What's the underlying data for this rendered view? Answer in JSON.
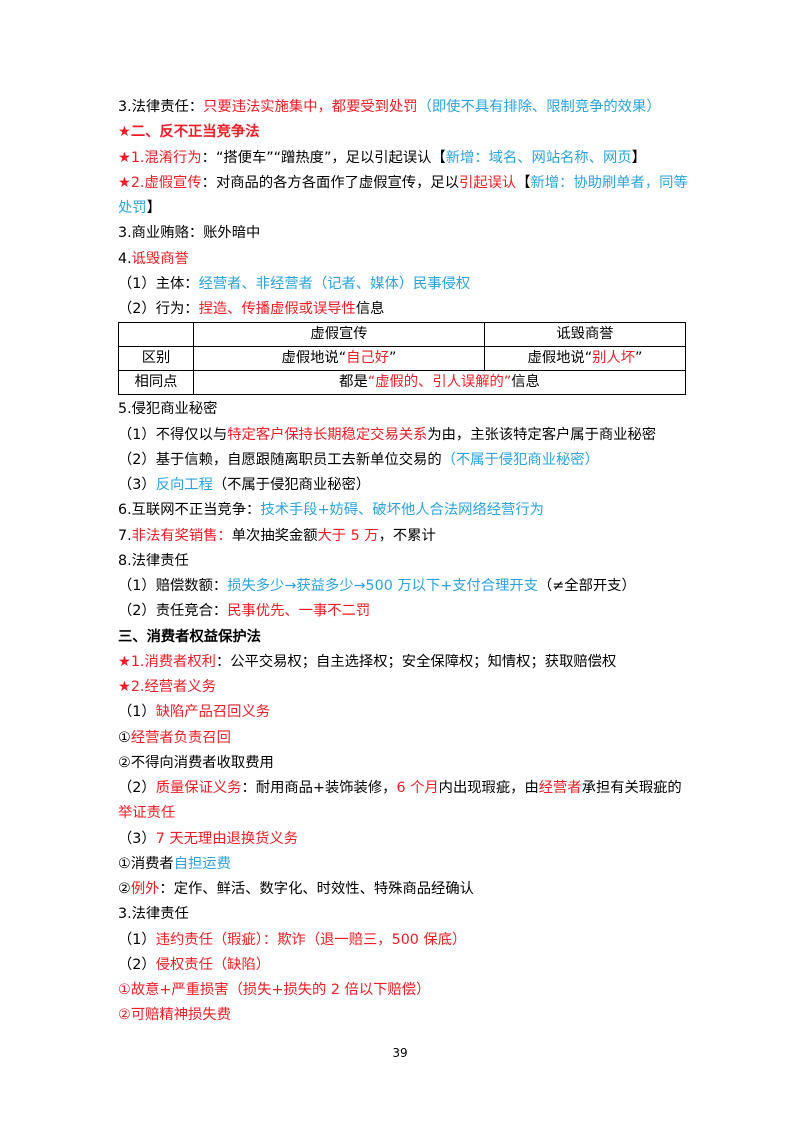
{
  "lines_before": [
    {
      "segments": [
        {
          "text": "3.法律责任：",
          "color": "#000000"
        },
        {
          "text": "只要违法实施集中，都要受到处罚",
          "color": "#ee1c25"
        },
        {
          "text": "（即使不具有排除、限制竞争的效果）",
          "color": "#2aa3dc"
        }
      ]
    },
    {
      "bold": true,
      "segments": [
        {
          "text": "★二、反不正当竞争法",
          "color": "#ee1c25"
        }
      ]
    },
    {
      "segments": [
        {
          "text": "★1.混淆行为",
          "color": "#ee1c25"
        },
        {
          "text": "：“搭便车”“蹭热度”，足以引起误认【",
          "color": "#000000"
        },
        {
          "text": "新增：域名、网站名称、网页",
          "color": "#2aa3dc"
        },
        {
          "text": "】",
          "color": "#000000"
        }
      ]
    },
    {
      "segments": [
        {
          "text": "★2.虚假宣传",
          "color": "#ee1c25"
        },
        {
          "text": "：对商品的各方各面作了虚假宣传，足以",
          "color": "#000000"
        },
        {
          "text": "引起误认",
          "color": "#ee1c25"
        },
        {
          "text": "【",
          "color": "#000000"
        },
        {
          "text": "新增：协助刷单者，同等处罚",
          "color": "#2aa3dc"
        },
        {
          "text": "】",
          "color": "#000000"
        }
      ]
    },
    {
      "segments": [
        {
          "text": "3.商业贿赂：账外暗中",
          "color": "#000000"
        }
      ]
    },
    {
      "segments": [
        {
          "text": "4.",
          "color": "#000000"
        },
        {
          "text": "诋毁商誉",
          "color": "#ee1c25"
        }
      ]
    },
    {
      "segments": [
        {
          "text": "（1）主体：",
          "color": "#000000"
        },
        {
          "text": "经营者、非经营者（记者、媒体）民事侵权",
          "color": "#2aa3dc"
        }
      ]
    },
    {
      "segments": [
        {
          "text": "（2）行为：",
          "color": "#000000"
        },
        {
          "text": "捏造、传播虚假或误导性",
          "color": "#ee1c25"
        },
        {
          "text": "信息",
          "color": "#000000"
        }
      ]
    }
  ],
  "table": {
    "rows": [
      [
        null,
        [
          {
            "text": "虚假宣传",
            "color": "#000000"
          }
        ],
        [
          {
            "text": "诋毁商誉",
            "color": "#000000"
          }
        ]
      ],
      [
        [
          {
            "text": "区别",
            "color": "#000000"
          }
        ],
        [
          {
            "text": "虚假地说“",
            "color": "#000000"
          },
          {
            "text": "自己好",
            "color": "#ee1c25"
          },
          {
            "text": "”",
            "color": "#000000"
          }
        ],
        [
          {
            "text": "虚假地说“",
            "color": "#000000"
          },
          {
            "text": "别人坏",
            "color": "#ee1c25"
          },
          {
            "text": "”",
            "color": "#000000"
          }
        ]
      ],
      [
        [
          {
            "text": "相同点",
            "color": "#000000"
          }
        ],
        [
          {
            "text": "都是",
            "color": "#000000"
          },
          {
            "text": "“虚假的、引人误解的”",
            "color": "#ee1c25"
          },
          {
            "text": "信息",
            "color": "#000000"
          }
        ]
      ]
    ]
  },
  "lines_after": [
    {
      "segments": [
        {
          "text": "5.侵犯商业秘密",
          "color": "#000000"
        }
      ]
    },
    {
      "segments": [
        {
          "text": "（1）不得仅以与",
          "color": "#000000"
        },
        {
          "text": "特定客户保持长期稳定交易关系",
          "color": "#ee1c25"
        },
        {
          "text": "为由，主张该特定客户属于商业秘密",
          "color": "#000000"
        }
      ]
    },
    {
      "segments": [
        {
          "text": "（2）基于信赖，自愿跟随离职员工去新单位交易的",
          "color": "#000000"
        },
        {
          "text": "（不属于侵犯商业秘密）",
          "color": "#2aa3dc"
        }
      ]
    },
    {
      "segments": [
        {
          "text": "（3）",
          "color": "#000000"
        },
        {
          "text": "反向工程",
          "color": "#2aa3dc"
        },
        {
          "text": "（不属于侵犯商业秘密）",
          "color": "#000000"
        }
      ]
    },
    {
      "segments": [
        {
          "text": "6.互联网不正当竞争：",
          "color": "#000000"
        },
        {
          "text": "技术手段+妨碍、破坏他人合法网络经营行为",
          "color": "#2aa3dc"
        }
      ]
    },
    {
      "segments": [
        {
          "text": "7.",
          "color": "#000000"
        },
        {
          "text": "非法有奖销售：",
          "color": "#ee1c25"
        },
        {
          "text": "单次抽奖金额",
          "color": "#000000"
        },
        {
          "text": "大于 5 万",
          "color": "#ee1c25"
        },
        {
          "text": "，不累计",
          "color": "#000000"
        }
      ]
    },
    {
      "segments": [
        {
          "text": "8.法律责任",
          "color": "#000000"
        }
      ]
    },
    {
      "segments": [
        {
          "text": "（1）赔偿数额：",
          "color": "#000000"
        },
        {
          "text": "损失多少→获益多少→500 万以下+支付合理开支",
          "color": "#2aa3dc"
        },
        {
          "text": "（≠全部开支）",
          "color": "#000000"
        }
      ]
    },
    {
      "segments": [
        {
          "text": "（2）责任竞合：",
          "color": "#000000"
        },
        {
          "text": "民事优先、一事不二罚",
          "color": "#ee1c25"
        }
      ]
    },
    {
      "bold": true,
      "segments": [
        {
          "text": "三、消费者权益保护法",
          "color": "#000000"
        }
      ]
    },
    {
      "segments": [
        {
          "text": "★1.消费者权利",
          "color": "#ee1c25"
        },
        {
          "text": "：公平交易权；自主选择权；安全保障权；知情权；获取赔偿权",
          "color": "#000000"
        }
      ]
    },
    {
      "segments": [
        {
          "text": "★2.经营者义务",
          "color": "#ee1c25"
        }
      ]
    },
    {
      "segments": [
        {
          "text": "（1）",
          "color": "#000000"
        },
        {
          "text": "缺陷产品召回义务",
          "color": "#ee1c25"
        }
      ]
    },
    {
      "segments": [
        {
          "text": "①",
          "color": "#000000"
        },
        {
          "text": "经营者负责召回",
          "color": "#ee1c25"
        }
      ]
    },
    {
      "segments": [
        {
          "text": "②不得向消费者收取费用",
          "color": "#000000"
        }
      ]
    },
    {
      "segments": [
        {
          "text": "（2）",
          "color": "#000000"
        },
        {
          "text": "质量保证义务",
          "color": "#ee1c25"
        },
        {
          "text": "：耐用商品+装饰装修，",
          "color": "#000000"
        },
        {
          "text": "6 个月",
          "color": "#ee1c25"
        },
        {
          "text": "内出现瑕疵，由",
          "color": "#000000"
        },
        {
          "text": "经营者",
          "color": "#ee1c25"
        },
        {
          "text": "承担有关瑕疵的",
          "color": "#000000"
        },
        {
          "text": "举证责任",
          "color": "#ee1c25"
        }
      ]
    },
    {
      "segments": [
        {
          "text": "（3）",
          "color": "#000000"
        },
        {
          "text": "7 天无理由退换货义务",
          "color": "#ee1c25"
        }
      ]
    },
    {
      "segments": [
        {
          "text": "①消费者",
          "color": "#000000"
        },
        {
          "text": "自担运费",
          "color": "#2aa3dc"
        }
      ]
    },
    {
      "segments": [
        {
          "text": "②",
          "color": "#000000"
        },
        {
          "text": "例外",
          "color": "#ee1c25"
        },
        {
          "text": "：定作、鲜活、数字化、时效性、特殊商品经确认",
          "color": "#000000"
        }
      ]
    },
    {
      "segments": [
        {
          "text": "3.法律责任",
          "color": "#000000"
        }
      ]
    },
    {
      "segments": [
        {
          "text": "（1）",
          "color": "#000000"
        },
        {
          "text": "违约责任（瑕疵）：欺诈（退一赔三，500 保底）",
          "color": "#ee1c25"
        }
      ]
    },
    {
      "segments": [
        {
          "text": "（2）",
          "color": "#000000"
        },
        {
          "text": "侵权责任（缺陷）",
          "color": "#ee1c25"
        }
      ]
    },
    {
      "segments": [
        {
          "text": "①故意+严重损害（损失+损失的 2 倍以下赔偿）",
          "color": "#ee1c25"
        }
      ]
    },
    {
      "segments": [
        {
          "text": "②可赔精神损失费",
          "color": "#ee1c25"
        }
      ]
    }
  ],
  "page_number": "39"
}
